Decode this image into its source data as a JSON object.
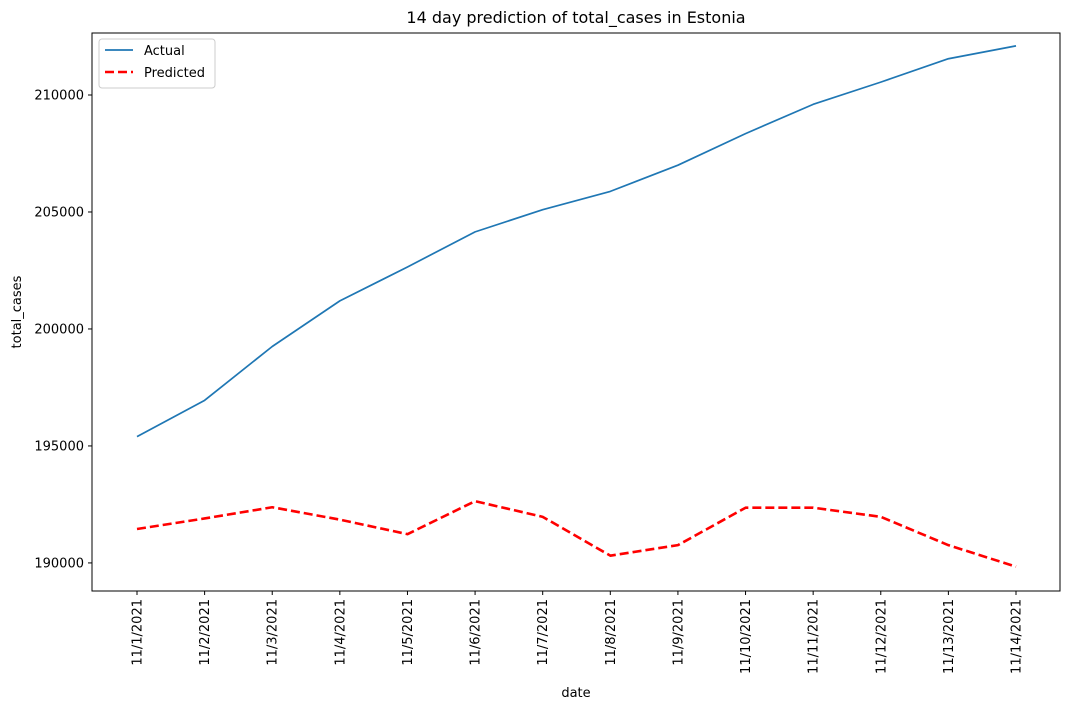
{
  "chart_data": {
    "type": "line",
    "title": "14 day prediction of total_cases in Estonia",
    "xlabel": "date",
    "ylabel": "total_cases",
    "x": [
      "11/1/2021",
      "11/2/2021",
      "11/3/2021",
      "11/4/2021",
      "11/5/2021",
      "11/6/2021",
      "11/7/2021",
      "11/8/2021",
      "11/9/2021",
      "11/10/2021",
      "11/11/2021",
      "11/12/2021",
      "11/13/2021",
      "11/14/2021"
    ],
    "y_ticks": [
      "190000",
      "195000",
      "200000",
      "205000",
      "210000"
    ],
    "ylim": [
      188800,
      212650
    ],
    "grid": false,
    "legend_position": "top-left",
    "series": [
      {
        "name": "Actual",
        "color": "#1f77b4",
        "style": "solid",
        "values": [
          195400,
          196950,
          199250,
          201200,
          202650,
          204150,
          205100,
          205880,
          207000,
          208350,
          209600,
          210550,
          211550,
          212100
        ]
      },
      {
        "name": "Predicted",
        "color": "#ff0000",
        "style": "dashed",
        "values": [
          191450,
          191900,
          192380,
          191850,
          191230,
          192640,
          191970,
          190310,
          190760,
          192360,
          192360,
          191970,
          190760,
          189840
        ]
      }
    ]
  }
}
